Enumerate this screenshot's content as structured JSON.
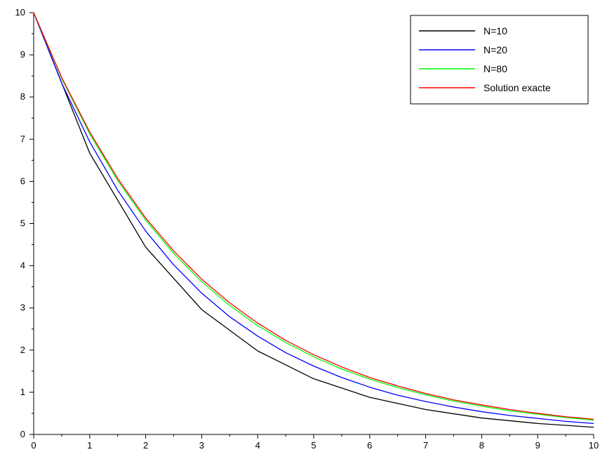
{
  "chart_data": {
    "type": "line",
    "title": "",
    "xlabel": "",
    "ylabel": "",
    "xlim": [
      0,
      10
    ],
    "ylim": [
      0,
      10
    ],
    "x_ticks": [
      0,
      1,
      2,
      3,
      4,
      5,
      6,
      7,
      8,
      9,
      10
    ],
    "y_ticks": [
      0,
      1,
      2,
      3,
      4,
      5,
      6,
      7,
      8,
      9,
      10
    ],
    "grid": false,
    "legend_position": "top-right",
    "series": [
      {
        "name": "N=10",
        "color": "#000000",
        "x": [
          0,
          1,
          2,
          3,
          4,
          5,
          6,
          7,
          8,
          9,
          10
        ],
        "y": [
          10,
          6.67,
          4.44,
          2.96,
          1.98,
          1.32,
          0.88,
          0.59,
          0.39,
          0.26,
          0.17
        ]
      },
      {
        "name": "N=20",
        "color": "#0000ff",
        "x": [
          0,
          0.5,
          1,
          1.5,
          2,
          2.5,
          3,
          3.5,
          4,
          4.5,
          5,
          5.5,
          6,
          6.5,
          7,
          7.5,
          8,
          8.5,
          9,
          9.5,
          10
        ],
        "y": [
          10,
          8.33,
          6.94,
          5.79,
          4.82,
          4.02,
          3.35,
          2.79,
          2.33,
          1.94,
          1.62,
          1.35,
          1.12,
          0.93,
          0.78,
          0.65,
          0.54,
          0.45,
          0.38,
          0.31,
          0.26
        ]
      },
      {
        "name": "N=80",
        "color": "#00ff00",
        "x": [
          0,
          0.5,
          1,
          1.5,
          2,
          2.5,
          3,
          3.5,
          4,
          4.5,
          5,
          5.5,
          6,
          6.5,
          7,
          7.5,
          8,
          8.5,
          9,
          9.5,
          10
        ],
        "y": [
          10,
          8.44,
          7.13,
          6.02,
          5.08,
          4.29,
          3.62,
          3.06,
          2.58,
          2.18,
          1.84,
          1.55,
          1.31,
          1.11,
          0.94,
          0.79,
          0.67,
          0.56,
          0.48,
          0.4,
          0.34
        ]
      },
      {
        "name": "Solution exacte",
        "color": "#ff0000",
        "x": [
          0,
          0.5,
          1,
          1.5,
          2,
          2.5,
          3,
          3.5,
          4,
          4.5,
          5,
          5.5,
          6,
          6.5,
          7,
          7.5,
          8,
          8.5,
          9,
          9.5,
          10
        ],
        "y": [
          10,
          8.46,
          7.17,
          6.07,
          5.13,
          4.35,
          3.68,
          3.12,
          2.64,
          2.23,
          1.89,
          1.6,
          1.35,
          1.15,
          0.97,
          0.82,
          0.7,
          0.59,
          0.5,
          0.42,
          0.36
        ]
      }
    ]
  }
}
